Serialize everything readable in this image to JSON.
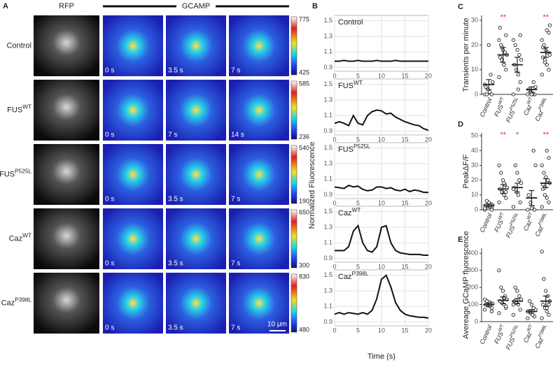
{
  "panel_a": {
    "label": "A",
    "rfp": "RFP",
    "gcamp": "GCAMP",
    "scale_bar": "10 μm",
    "rows": [
      {
        "name": {
          "text": "Control"
        },
        "times": [
          "0 s",
          "3.5 s",
          "7 s"
        ],
        "colorbar": {
          "max": 775,
          "min": 425
        }
      },
      {
        "name": {
          "text": "FUS",
          "sup": "WT"
        },
        "times": [
          "0 s",
          "7 s",
          "14 s"
        ],
        "colorbar": {
          "max": 585,
          "min": 236
        }
      },
      {
        "name": {
          "text": "FUS",
          "sup": "P525L"
        },
        "times": [
          "0 s",
          "3.5 s",
          "7 s"
        ],
        "colorbar": {
          "max": 540,
          "min": 190
        }
      },
      {
        "name": {
          "text": "Caz",
          "sup": "WT"
        },
        "times": [
          "0 s",
          "3.5 s",
          "7 s"
        ],
        "colorbar": {
          "max": 650,
          "min": 300
        }
      },
      {
        "name": {
          "text": "Caz",
          "sup": "P398L"
        },
        "times": [
          "0 s",
          "3.5 s",
          "7 s"
        ],
        "colorbar": {
          "max": 830,
          "min": 480
        }
      }
    ]
  },
  "panel_b": {
    "label": "B",
    "ylabel": "Normalized Fluorescence",
    "xlabel": "Time (s)"
  },
  "chart_data": [
    {
      "type": "line",
      "title": {
        "text": "Control"
      },
      "color": "#111",
      "grid": true,
      "x": [
        0,
        1,
        2,
        3,
        4,
        5,
        6,
        7,
        8,
        9,
        10,
        11,
        12,
        13,
        14,
        15,
        16,
        17,
        18,
        19,
        20
      ],
      "values": [
        0.98,
        0.98,
        0.99,
        0.98,
        0.98,
        0.99,
        0.98,
        0.98,
        0.98,
        0.99,
        0.98,
        0.98,
        0.98,
        0.99,
        0.98,
        0.98,
        0.98,
        0.98,
        0.98,
        0.98,
        0.98
      ],
      "xlim": [
        0,
        20
      ],
      "ylim": [
        0.85,
        1.57
      ],
      "xticks": [
        0,
        5,
        10,
        15,
        20
      ],
      "yticks": [
        0.9,
        1.1,
        1.3,
        1.5
      ]
    },
    {
      "type": "line",
      "title": {
        "text": "FUS",
        "sup": "WT"
      },
      "color": "#111",
      "grid": true,
      "x": [
        0,
        1,
        2,
        3,
        4,
        5,
        6,
        7,
        8,
        9,
        10,
        11,
        12,
        13,
        14,
        15,
        16,
        17,
        18,
        19,
        20
      ],
      "values": [
        1.0,
        1.02,
        1.0,
        0.97,
        1.1,
        1.0,
        0.98,
        1.1,
        1.15,
        1.17,
        1.16,
        1.12,
        1.13,
        1.08,
        1.05,
        1.02,
        1.0,
        0.98,
        0.97,
        0.93,
        0.91
      ],
      "xlim": [
        0,
        20
      ],
      "ylim": [
        0.85,
        1.57
      ],
      "xticks": [
        0,
        5,
        10,
        15,
        20
      ],
      "yticks": [
        0.9,
        1.1,
        1.3,
        1.5
      ]
    },
    {
      "type": "line",
      "title": {
        "text": "FUS",
        "sup": "P525L"
      },
      "color": "#111",
      "grid": true,
      "x": [
        0,
        1,
        2,
        3,
        4,
        5,
        6,
        7,
        8,
        9,
        10,
        11,
        12,
        13,
        14,
        15,
        16,
        17,
        18,
        19,
        20
      ],
      "values": [
        1.0,
        0.99,
        0.98,
        1.02,
        1.0,
        1.01,
        0.97,
        0.95,
        0.96,
        1.0,
        1.0,
        0.98,
        0.99,
        0.96,
        0.95,
        0.97,
        0.94,
        0.96,
        0.95,
        0.93,
        0.93
      ],
      "xlim": [
        0,
        20
      ],
      "ylim": [
        0.85,
        1.57
      ],
      "xticks": [
        0,
        5,
        10,
        15,
        20
      ],
      "yticks": [
        0.9,
        1.1,
        1.3,
        1.5
      ]
    },
    {
      "type": "line",
      "title": {
        "text": "Caz",
        "sup": "WT"
      },
      "color": "#111",
      "grid": true,
      "x": [
        0,
        1,
        2,
        3,
        4,
        5,
        6,
        7,
        8,
        9,
        10,
        11,
        12,
        13,
        14,
        15,
        16,
        17,
        18,
        19,
        20
      ],
      "values": [
        1.0,
        1.0,
        1.0,
        1.05,
        1.25,
        1.32,
        1.1,
        1.0,
        0.98,
        1.05,
        1.3,
        1.32,
        1.1,
        1.0,
        0.97,
        0.96,
        0.95,
        0.95,
        0.95,
        0.94,
        0.94
      ],
      "xlim": [
        0,
        20
      ],
      "ylim": [
        0.85,
        1.57
      ],
      "xticks": [
        0,
        5,
        10,
        15,
        20
      ],
      "yticks": [
        0.9,
        1.1,
        1.3,
        1.5
      ]
    },
    {
      "type": "line",
      "title": {
        "text": "Caz",
        "sup": "P398L"
      },
      "color": "#111",
      "grid": true,
      "x": [
        0,
        1,
        2,
        3,
        4,
        5,
        6,
        7,
        8,
        9,
        10,
        11,
        12,
        13,
        14,
        15,
        16,
        17,
        18,
        19,
        20
      ],
      "values": [
        1.0,
        1.02,
        1.0,
        1.02,
        1.01,
        1.0,
        1.02,
        1.0,
        1.05,
        1.2,
        1.45,
        1.5,
        1.35,
        1.15,
        1.05,
        1.0,
        0.98,
        0.97,
        0.96,
        0.96,
        0.95
      ],
      "xlim": [
        0,
        20
      ],
      "ylim": [
        0.85,
        1.57
      ],
      "xticks": [
        0,
        5,
        10,
        15,
        20
      ],
      "yticks": [
        0.9,
        1.1,
        1.3,
        1.5
      ]
    },
    {
      "type": "dot_plot",
      "panel": "C",
      "ylabel": "Transients per minute",
      "color": "#222",
      "significance_color": "#e8312a",
      "categories": [
        {
          "text": "Control"
        },
        {
          "text": "FUS",
          "sup": "WT"
        },
        {
          "text": "FUS",
          "sup": "P525L"
        },
        {
          "text": "Caz",
          "sup": "WT"
        },
        {
          "text": "Caz",
          "sup": "P398L"
        }
      ],
      "points": [
        [
          0,
          0,
          1,
          2,
          3,
          5,
          8,
          20,
          0,
          4
        ],
        [
          7,
          10,
          12,
          14,
          15,
          16,
          17,
          18,
          20,
          22,
          24,
          12,
          19,
          27
        ],
        [
          0,
          5,
          8,
          10,
          12,
          14,
          16,
          18,
          20,
          22,
          24,
          2
        ],
        [
          0,
          0,
          0,
          1,
          2,
          3,
          5,
          0
        ],
        [
          8,
          10,
          12,
          14,
          15,
          16,
          17,
          18,
          20,
          22,
          25,
          26,
          13,
          19,
          28
        ]
      ],
      "means": [
        4,
        16,
        12,
        2,
        17
      ],
      "sem": [
        2,
        3,
        3,
        1,
        2
      ],
      "significance": [
        null,
        "**",
        null,
        null,
        "**"
      ],
      "ylim": [
        0,
        32
      ],
      "yticks": [
        0,
        10,
        20,
        30
      ]
    },
    {
      "type": "dot_plot",
      "panel": "D",
      "ylabel": "PeakΔF/F",
      "color": "#222",
      "significance_color": "#e8312a",
      "categories": [
        {
          "text": "Control"
        },
        {
          "text": "FUS",
          "sup": "WT"
        },
        {
          "text": "FUS",
          "sup": "P525L"
        },
        {
          "text": "Caz",
          "sup": "WT"
        },
        {
          "text": "Caz",
          "sup": "P398L"
        }
      ],
      "points": [
        [
          0,
          1,
          2,
          2,
          3,
          3,
          4,
          5,
          6,
          1,
          0,
          2
        ],
        [
          5,
          8,
          10,
          12,
          14,
          15,
          17,
          20,
          25,
          30,
          12,
          18
        ],
        [
          2,
          5,
          10,
          12,
          15,
          18,
          20,
          25,
          30,
          14
        ],
        [
          0,
          0,
          2,
          5,
          10,
          30,
          40,
          1
        ],
        [
          2,
          5,
          8,
          10,
          14,
          18,
          20,
          22,
          25,
          30,
          35,
          40,
          15,
          17
        ]
      ],
      "means": [
        3,
        14,
        15,
        8,
        18
      ],
      "sem": [
        1,
        3,
        3,
        5,
        3
      ],
      "significance": [
        null,
        "**",
        "*",
        null,
        "**"
      ],
      "ylim": [
        0,
        52
      ],
      "yticks": [
        0,
        10,
        20,
        30,
        40,
        50
      ]
    },
    {
      "type": "dot_plot",
      "panel": "E",
      "ylabel": "Avereage GCaMP fluorescence",
      "color": "#222",
      "significance_color": "#e8312a",
      "categories": [
        {
          "text": "Control"
        },
        {
          "text": "FUS",
          "sup": "WT"
        },
        {
          "text": "FUS",
          "sup": "P525L"
        },
        {
          "text": "Caz",
          "sup": "WT"
        },
        {
          "text": "Caz",
          "sup": "P398L"
        }
      ],
      "points": [
        [
          70,
          80,
          90,
          95,
          100,
          105,
          110,
          115,
          120,
          130,
          60,
          100
        ],
        [
          50,
          80,
          100,
          110,
          120,
          130,
          150,
          180,
          200,
          300,
          90,
          140
        ],
        [
          40,
          70,
          100,
          110,
          120,
          130,
          150,
          180,
          200,
          100
        ],
        [
          20,
          30,
          40,
          50,
          60,
          70,
          80,
          100,
          120,
          60
        ],
        [
          20,
          40,
          60,
          80,
          100,
          120,
          150,
          180,
          250,
          410,
          100,
          80
        ]
      ],
      "means": [
        100,
        125,
        120,
        60,
        120
      ],
      "sem": [
        10,
        20,
        15,
        10,
        30
      ],
      "significance": [
        null,
        null,
        null,
        null,
        null
      ],
      "ylim": [
        0,
        430
      ],
      "yticks": [
        0,
        100,
        200,
        300,
        400
      ]
    }
  ]
}
